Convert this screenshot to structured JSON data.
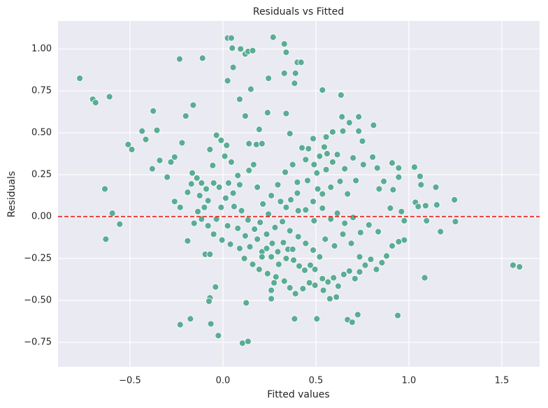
{
  "chart_data": {
    "type": "scatter",
    "title": "Residuals vs Fitted",
    "x_label": "Fitted values",
    "y_label": "Residuals",
    "color": "#5aad94",
    "background": "#eaeaf2",
    "grid": true,
    "hline": 0,
    "hline_color": "#e8120c",
    "xlim": [
      -0.887,
      1.703
    ],
    "ylim": [
      -0.896,
      1.167
    ],
    "xticks": [
      {
        "value": -0.5,
        "label": "−0.5"
      },
      {
        "value": 0,
        "label": "0.0"
      },
      {
        "value": 0.5,
        "label": "0.5"
      },
      {
        "value": 1,
        "label": "1.0"
      },
      {
        "value": 1.5,
        "label": "1.5"
      }
    ],
    "yticks": [
      {
        "value": -0.75,
        "label": "−0.75"
      },
      {
        "value": -0.5,
        "label": "−0.50"
      },
      {
        "value": -0.25,
        "label": "−0.25"
      },
      {
        "value": 0,
        "label": "0.00"
      },
      {
        "value": 0.25,
        "label": "0.25"
      },
      {
        "value": 0.5,
        "label": "0.50"
      },
      {
        "value": 0.75,
        "label": "0.75"
      },
      {
        "value": 1,
        "label": "1.00"
      }
    ],
    "x": [
      -0.77,
      -0.7,
      -0.685,
      -0.61,
      -0.635,
      -0.63,
      -0.595,
      -0.555,
      -0.51,
      -0.49,
      -0.435,
      -0.415,
      -0.375,
      -0.355,
      -0.38,
      -0.34,
      -0.233,
      -0.11,
      -0.16,
      -0.2,
      -0.22,
      -0.26,
      -0.28,
      -0.3,
      -0.26,
      -0.23,
      -0.19,
      -0.23,
      -0.175,
      -0.095,
      -0.07,
      -0.07,
      -0.075,
      -0.04,
      -0.065,
      -0.025,
      0.025,
      0.045,
      0.05,
      0.055,
      0.025,
      0.095,
      0.12,
      0.135,
      0.16,
      0.15,
      0.27,
      0.33,
      0.34,
      0.4,
      0.42,
      0.39,
      0.33,
      0.385,
      0.245,
      0.09,
      0.535,
      0.635,
      0.12,
      0.24,
      0.34,
      0.195,
      0.36,
      0.14,
      0.18,
      0.21,
      0.165,
      0.105,
      0.135,
      0.125,
      0.26,
      0.26,
      0.385,
      0.505,
      0.67,
      0.695,
      0.725,
      0.94,
      1.085,
      1.56,
      1.595,
      1.245,
      1.25,
      1.145,
      1.15,
      1.17,
      1.03,
      1.06,
      1.065,
      1.035,
      1.05,
      1.09,
      1.095,
      0.975,
      0.945,
      0.975,
      0.96,
      0.945,
      0.91,
      0.945,
      0.915,
      0.9,
      0.84,
      0.865,
      0.83,
      0.805,
      0.81,
      0.75,
      0.73,
      0.73,
      0.64,
      0.68,
      0.645,
      0.59,
      0.555,
      0.545,
      0.56,
      0.615,
      0.59,
      0.555,
      0.52,
      0.485,
      0.46,
      0.425,
      0.505,
      0.455,
      0.4,
      0.4,
      0.445,
      0.405,
      0.34,
      0.31,
      0.245,
      0.215,
      0.185,
      0.14,
      0.09,
      0.055,
      0.015,
      -0.01,
      -0.035,
      0.025,
      0.08,
      0.12,
      0.145,
      0.185,
      0.21,
      0.235,
      0.265,
      0.295,
      0.325,
      0.35,
      0.38,
      0.41,
      0.44,
      0.47,
      0.495,
      0.535,
      0.565,
      0.595,
      0.62,
      0.65,
      0.68,
      0.71,
      0.735,
      0.765,
      0.795,
      0.825,
      0.855,
      0.88,
      0.91,
      0.835,
      0.785,
      0.74,
      0.7,
      0.655,
      0.615,
      0.58,
      0.535,
      0.49,
      0.55,
      0.6,
      0.645,
      0.69,
      0.735,
      0.67,
      0.715,
      0.755,
      0.63,
      0.58,
      0.535,
      0.7,
      0.655,
      -0.165,
      -0.14,
      -0.115,
      -0.09,
      -0.19,
      -0.17,
      -0.125,
      -0.08,
      -0.05,
      -0.055,
      -0.07,
      -0.035,
      -0.01,
      0.02,
      0.01,
      0.045,
      0.08,
      0.03,
      -0.02,
      -0.1,
      -0.135,
      -0.155,
      -0.115,
      -0.08,
      -0.05,
      -0.005,
      0.04,
      0.09,
      0.115,
      0.16,
      0.195,
      0.24,
      0.285,
      0.33,
      0.36,
      0.39,
      0.43,
      0.465,
      0.495,
      0.54,
      0.575,
      0.61,
      0.275,
      0.21,
      0.17,
      0.135,
      0.1,
      0.06,
      0.28,
      0.32,
      0.36,
      0.405,
      0.445,
      0.485,
      0.52,
      0.375,
      0.34,
      0.3,
      0.26,
      0.235,
      0.2,
      0.26,
      0.295,
      0.335,
      0.375,
      0.365,
      0.485,
      0.51,
      0.49,
      0.445
    ],
    "values": [
      0.825,
      0.7,
      0.68,
      0.715,
      0.165,
      -0.135,
      0.02,
      -0.045,
      0.43,
      0.4,
      0.51,
      0.46,
      0.63,
      0.515,
      0.285,
      0.335,
      0.94,
      0.945,
      0.665,
      0.6,
      0.44,
      0.355,
      0.325,
      0.235,
      0.09,
      0.055,
      -0.145,
      -0.645,
      -0.61,
      -0.225,
      -0.225,
      -0.485,
      -0.505,
      -0.42,
      -0.64,
      -0.71,
      1.065,
      1.065,
      1.005,
      0.89,
      0.81,
      1.0,
      0.97,
      0.985,
      0.99,
      0.76,
      1.07,
      1.03,
      0.98,
      0.92,
      0.92,
      0.855,
      0.855,
      0.795,
      0.825,
      0.7,
      0.755,
      0.725,
      0.6,
      0.62,
      0.615,
      0.52,
      0.495,
      0.435,
      0.43,
      0.435,
      0.31,
      -0.755,
      -0.745,
      -0.515,
      -0.49,
      -0.44,
      -0.61,
      -0.61,
      -0.615,
      -0.63,
      -0.585,
      -0.59,
      -0.365,
      -0.29,
      -0.3,
      0.1,
      -0.03,
      0.175,
      0.07,
      -0.09,
      0.295,
      0.24,
      0.19,
      0.085,
      0.06,
      0.065,
      -0.025,
      -0.14,
      -0.15,
      -0.025,
      0.03,
      0.29,
      0.32,
      0.235,
      0.16,
      0.05,
      0.165,
      0.21,
      0.29,
      0.355,
      0.545,
      0.45,
      0.51,
      0.595,
      0.595,
      0.56,
      0.51,
      0.505,
      0.475,
      0.415,
      0.375,
      0.37,
      0.325,
      0.28,
      0.36,
      0.465,
      0.405,
      0.41,
      0.26,
      0.215,
      0.205,
      0.14,
      0.04,
      0.035,
      0.055,
      0.09,
      0.015,
      0.075,
      0.175,
      0.275,
      0.19,
      0.14,
      0.11,
      0.055,
      -0.015,
      -0.055,
      -0.07,
      -0.115,
      -0.18,
      -0.135,
      -0.21,
      -0.19,
      -0.16,
      -0.21,
      -0.155,
      -0.195,
      -0.26,
      -0.295,
      -0.32,
      -0.29,
      -0.315,
      -0.37,
      -0.39,
      -0.365,
      -0.415,
      -0.345,
      -0.325,
      -0.37,
      -0.33,
      -0.29,
      -0.255,
      -0.315,
      -0.275,
      -0.235,
      -0.175,
      -0.09,
      -0.05,
      -0.095,
      -0.005,
      -0.04,
      0.02,
      -0.015,
      0.05,
      -0.025,
      -0.135,
      -0.175,
      -0.105,
      -0.16,
      -0.24,
      0.135,
      0.215,
      0.31,
      0.21,
      0.175,
      0.135,
      0.35,
      0.285,
      0.26,
      0.23,
      0.2,
      0.165,
      0.145,
      0.195,
      0.125,
      0.095,
      0.2,
      0.305,
      0.4,
      0.485,
      0.455,
      0.425,
      0.36,
      0.325,
      0.245,
      0.2,
      0.175,
      0.055,
      0.03,
      -0.04,
      -0.015,
      -0.055,
      -0.105,
      -0.14,
      -0.165,
      -0.19,
      -0.25,
      -0.285,
      -0.315,
      -0.34,
      -0.36,
      -0.385,
      -0.425,
      -0.46,
      -0.43,
      -0.395,
      -0.41,
      -0.44,
      -0.49,
      -0.48,
      -0.395,
      -0.24,
      -0.075,
      -0.02,
      0.035,
      0.06,
      -0.065,
      -0.03,
      -0.085,
      -0.12,
      -0.16,
      -0.2,
      -0.24,
      -0.195,
      -0.25,
      -0.285,
      -0.24,
      -0.105,
      -0.035,
      0.125,
      0.19,
      0.265,
      0.31,
      0.1,
      0.09,
      0.165,
      0.31,
      0.34
    ]
  }
}
